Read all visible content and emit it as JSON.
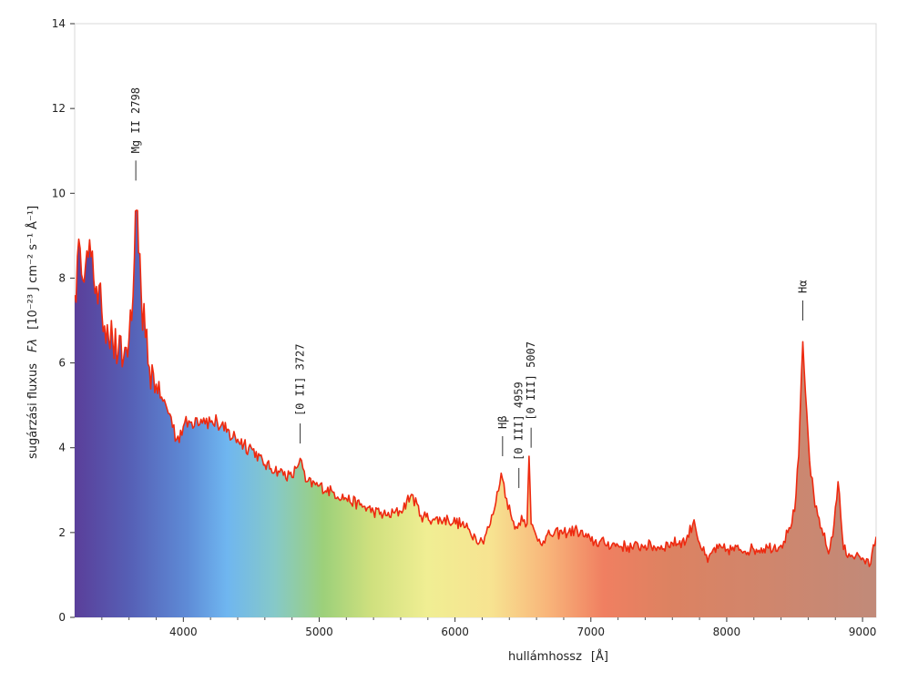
{
  "chart_data": {
    "type": "line",
    "xlabel": "hullámhossz",
    "xunit": "[Å]",
    "ylabel_prefix": "sugárzási fluxus",
    "ylabel_symbol": "Fλ",
    "ylabel_unit": "[10⁻²³ J cm⁻² s⁻¹ Å⁻¹]",
    "xlim": [
      3200,
      9100
    ],
    "ylim": [
      0,
      14
    ],
    "xticks": [
      4000,
      5000,
      6000,
      7000,
      8000,
      9000
    ],
    "yticks": [
      0,
      2,
      4,
      6,
      8,
      10,
      12,
      14
    ],
    "grid": false,
    "fill": "visible-spectrum gradient under curve (violet at short wavelength to red at long wavelength)",
    "line_color": "#ee2a10",
    "series": [
      {
        "values": [
          [
            3200,
            7.6
          ],
          [
            3240,
            8.7
          ],
          [
            3280,
            8.3
          ],
          [
            3320,
            8.5
          ],
          [
            3360,
            7.8
          ],
          [
            3400,
            7.2
          ],
          [
            3440,
            6.9
          ],
          [
            3480,
            6.5
          ],
          [
            3520,
            6.2
          ],
          [
            3560,
            6.1
          ],
          [
            3600,
            6.6
          ],
          [
            3620,
            7.0
          ],
          [
            3640,
            8.5
          ],
          [
            3655,
            9.6
          ],
          [
            3670,
            8.6
          ],
          [
            3690,
            7.6
          ],
          [
            3720,
            6.6
          ],
          [
            3750,
            5.9
          ],
          [
            3800,
            5.5
          ],
          [
            3850,
            5.1
          ],
          [
            3900,
            4.8
          ],
          [
            3950,
            4.2
          ],
          [
            4000,
            4.5
          ],
          [
            4050,
            4.6
          ],
          [
            4100,
            4.7
          ],
          [
            4150,
            4.7
          ],
          [
            4200,
            4.6
          ],
          [
            4250,
            4.6
          ],
          [
            4300,
            4.4
          ],
          [
            4400,
            4.2
          ],
          [
            4500,
            4.0
          ],
          [
            4600,
            3.6
          ],
          [
            4700,
            3.45
          ],
          [
            4800,
            3.3
          ],
          [
            4860,
            3.75
          ],
          [
            4900,
            3.2
          ],
          [
            5000,
            3.1
          ],
          [
            5100,
            2.95
          ],
          [
            5200,
            2.8
          ],
          [
            5300,
            2.65
          ],
          [
            5400,
            2.5
          ],
          [
            5500,
            2.4
          ],
          [
            5600,
            2.5
          ],
          [
            5680,
            2.9
          ],
          [
            5750,
            2.4
          ],
          [
            5850,
            2.3
          ],
          [
            5950,
            2.3
          ],
          [
            6050,
            2.2
          ],
          [
            6150,
            1.9
          ],
          [
            6200,
            1.8
          ],
          [
            6260,
            2.2
          ],
          [
            6300,
            2.7
          ],
          [
            6340,
            3.4
          ],
          [
            6380,
            2.8
          ],
          [
            6420,
            2.3
          ],
          [
            6460,
            2.1
          ],
          [
            6490,
            2.4
          ],
          [
            6510,
            2.3
          ],
          [
            6530,
            2.2
          ],
          [
            6545,
            3.8
          ],
          [
            6560,
            2.2
          ],
          [
            6600,
            1.9
          ],
          [
            6650,
            1.8
          ],
          [
            6700,
            1.95
          ],
          [
            6800,
            2.0
          ],
          [
            6900,
            2.05
          ],
          [
            7000,
            1.8
          ],
          [
            7100,
            1.75
          ],
          [
            7200,
            1.7
          ],
          [
            7300,
            1.65
          ],
          [
            7400,
            1.7
          ],
          [
            7500,
            1.65
          ],
          [
            7600,
            1.75
          ],
          [
            7700,
            1.8
          ],
          [
            7760,
            2.3
          ],
          [
            7800,
            1.75
          ],
          [
            7860,
            1.3
          ],
          [
            7900,
            1.6
          ],
          [
            8000,
            1.6
          ],
          [
            8100,
            1.6
          ],
          [
            8200,
            1.6
          ],
          [
            8300,
            1.65
          ],
          [
            8400,
            1.7
          ],
          [
            8450,
            2.0
          ],
          [
            8500,
            2.5
          ],
          [
            8530,
            3.8
          ],
          [
            8560,
            6.5
          ],
          [
            8580,
            5.3
          ],
          [
            8610,
            3.7
          ],
          [
            8650,
            2.6
          ],
          [
            8700,
            2.1
          ],
          [
            8750,
            1.5
          ],
          [
            8790,
            2.2
          ],
          [
            8820,
            3.2
          ],
          [
            8860,
            1.6
          ],
          [
            8900,
            1.5
          ],
          [
            8950,
            1.45
          ],
          [
            9000,
            1.4
          ],
          [
            9050,
            1.2
          ],
          [
            9100,
            1.9
          ]
        ]
      }
    ],
    "annotations": [
      {
        "text": "Mg II 2798",
        "x": 3650,
        "tick_y": 10.3
      },
      {
        "text": "[0 II] 3727",
        "x": 4860,
        "tick_y": 4.1
      },
      {
        "text": "Hβ",
        "x": 6350,
        "tick_y": 3.8
      },
      {
        "text": "[0 III] 4959",
        "x": 6470,
        "tick_y": 3.05
      },
      {
        "text": "[0 III] 5007",
        "x": 6560,
        "tick_y": 4.0
      },
      {
        "text": "Hα",
        "x": 8560,
        "tick_y": 7.0
      }
    ]
  }
}
